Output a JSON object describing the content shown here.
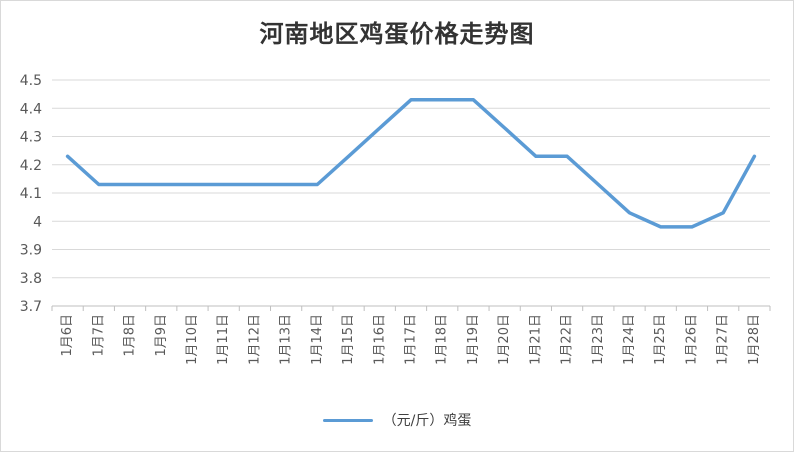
{
  "chart_data": {
    "type": "line",
    "title": "河南地区鸡蛋价格走势图",
    "categories": [
      "1月6日",
      "1月7日",
      "1月8日",
      "1月9日",
      "1月10日",
      "1月11日",
      "1月12日",
      "1月13日",
      "1月14日",
      "1月15日",
      "1月16日",
      "1月17日",
      "1月18日",
      "1月19日",
      "1月20日",
      "1月21日",
      "1月22日",
      "1月23日",
      "1月24日",
      "1月25日",
      "1月26日",
      "1月27日",
      "1月28日"
    ],
    "series": [
      {
        "name": "（元/斤）鸡蛋",
        "values": [
          4.23,
          4.13,
          4.13,
          4.13,
          4.13,
          4.13,
          4.13,
          4.13,
          4.13,
          4.23,
          4.33,
          4.43,
          4.43,
          4.43,
          4.33,
          4.23,
          4.23,
          4.13,
          4.03,
          3.98,
          3.98,
          4.03,
          4.23
        ],
        "color": "#5b9bd5"
      }
    ],
    "ylim": [
      3.7,
      4.5
    ],
    "yticks": [
      3.7,
      3.8,
      3.9,
      4,
      4.1,
      4.2,
      4.3,
      4.4,
      4.5
    ],
    "grid": true,
    "legend": "bottom"
  }
}
